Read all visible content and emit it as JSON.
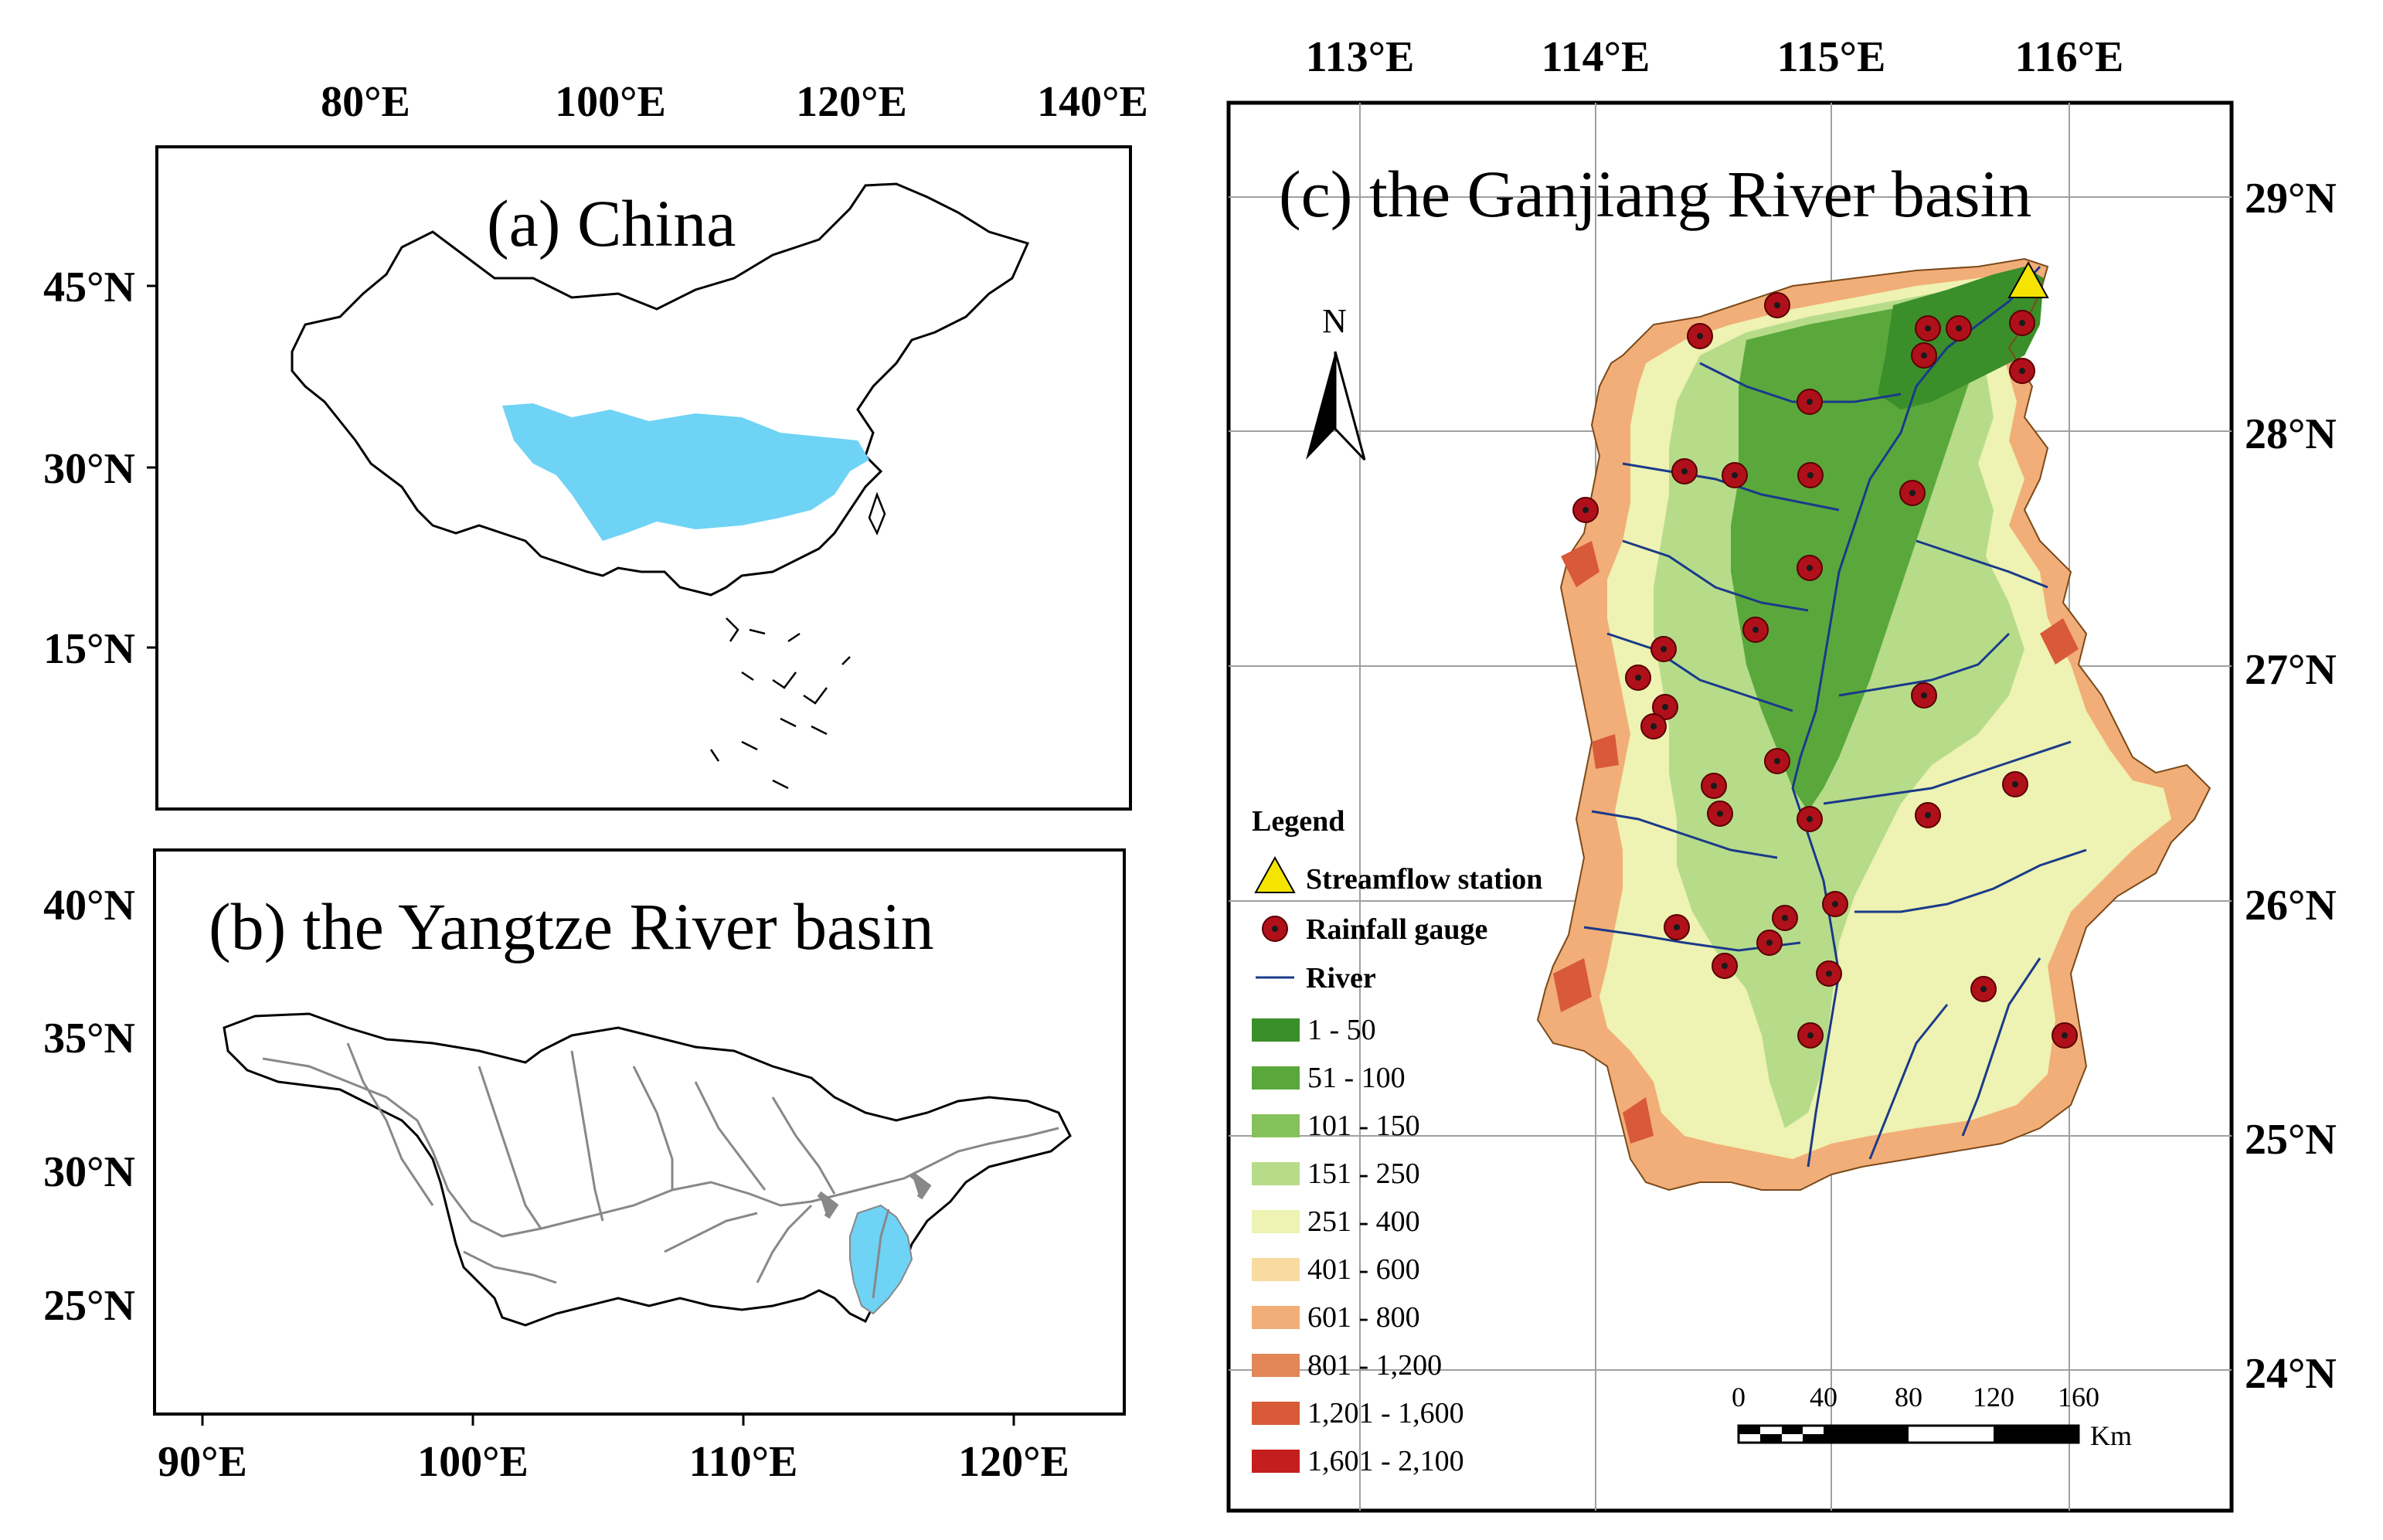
{
  "panel_a": {
    "title": "(a) China",
    "top_ticks": [
      "80°E",
      "100°E",
      "120°E",
      "140°E"
    ],
    "left_ticks": [
      "45°N",
      "30°N",
      "15°N"
    ]
  },
  "panel_b": {
    "title": "(b) the Yangtze River basin",
    "bottom_ticks": [
      "90°E",
      "100°E",
      "110°E",
      "120°E"
    ],
    "left_ticks": [
      "40°N",
      "35°N",
      "30°N",
      "25°N"
    ]
  },
  "panel_c": {
    "title": "(c) the Ganjiang River basin",
    "top_ticks": [
      "113°E",
      "114°E",
      "115°E",
      "116°E"
    ],
    "right_ticks": [
      "29°N",
      "28°N",
      "27°N",
      "26°N",
      "25°N",
      "24°N"
    ],
    "north_label": "N",
    "scale_numbers": [
      "0",
      "40",
      "80",
      "120",
      "160"
    ],
    "scale_unit": "Km"
  },
  "legend": {
    "title": "Legend",
    "streamflow": "Streamflow station",
    "rainfall": "Rainfall gauge",
    "river": "River",
    "classes": [
      {
        "label": "1 - 50",
        "color": "#3a8f2a"
      },
      {
        "label": "51 - 100",
        "color": "#5aa83c"
      },
      {
        "label": "101 - 150",
        "color": "#86c25c"
      },
      {
        "label": "151 - 250",
        "color": "#b6dc8a"
      },
      {
        "label": "251 - 400",
        "color": "#eef2b2"
      },
      {
        "label": "401 - 600",
        "color": "#f7dba0"
      },
      {
        "label": "601 - 800",
        "color": "#f2ae78"
      },
      {
        "label": "801 - 1,200",
        "color": "#e28658"
      },
      {
        "label": "1,201 - 1,600",
        "color": "#d85a38"
      },
      {
        "label": "1,601 - 2,100",
        "color": "#c41e1e"
      }
    ]
  },
  "colors": {
    "basin_fill": "#6fd3f5",
    "river_line": "#1a3a8a",
    "gauge": "#b0101a",
    "station": "#f4e400"
  }
}
